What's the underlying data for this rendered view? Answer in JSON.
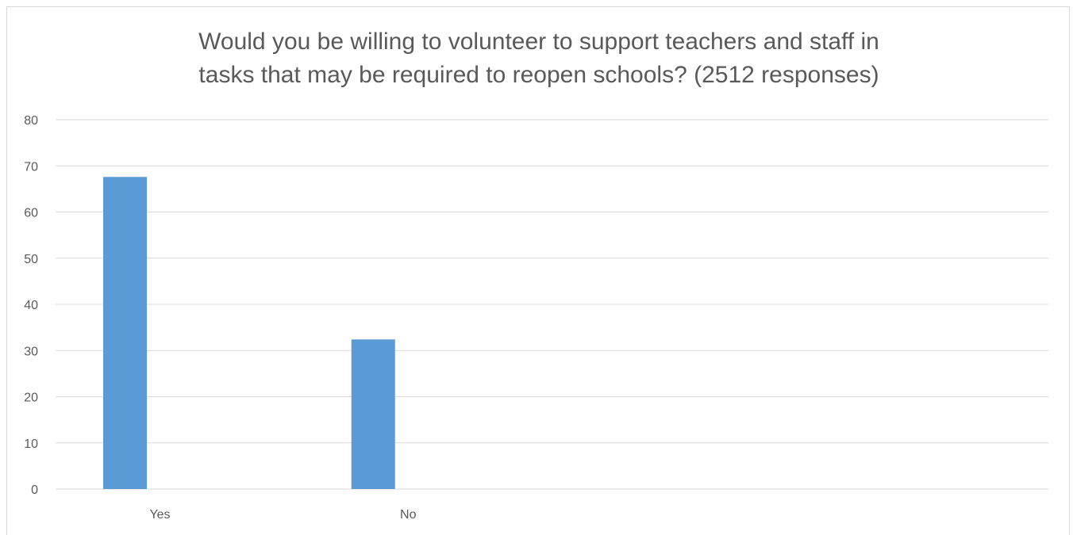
{
  "chart_data": {
    "type": "bar",
    "title_lines": [
      "Would you be willing to volunteer to support teachers and staff in",
      "tasks that may be required to reopen schools? (2512 responses)"
    ],
    "categories": [
      "Yes",
      "No",
      "",
      ""
    ],
    "values": [
      67.6,
      32.4,
      null,
      null
    ],
    "xlabel": "",
    "ylabel": "",
    "ylim": [
      0,
      80
    ],
    "yticks": [
      0,
      10,
      20,
      30,
      40,
      50,
      60,
      70,
      80
    ],
    "grid": true,
    "legend": "none",
    "bar_color": "#5b9bd5",
    "grid_color": "#d9d9d9",
    "text_color": "#595959"
  }
}
